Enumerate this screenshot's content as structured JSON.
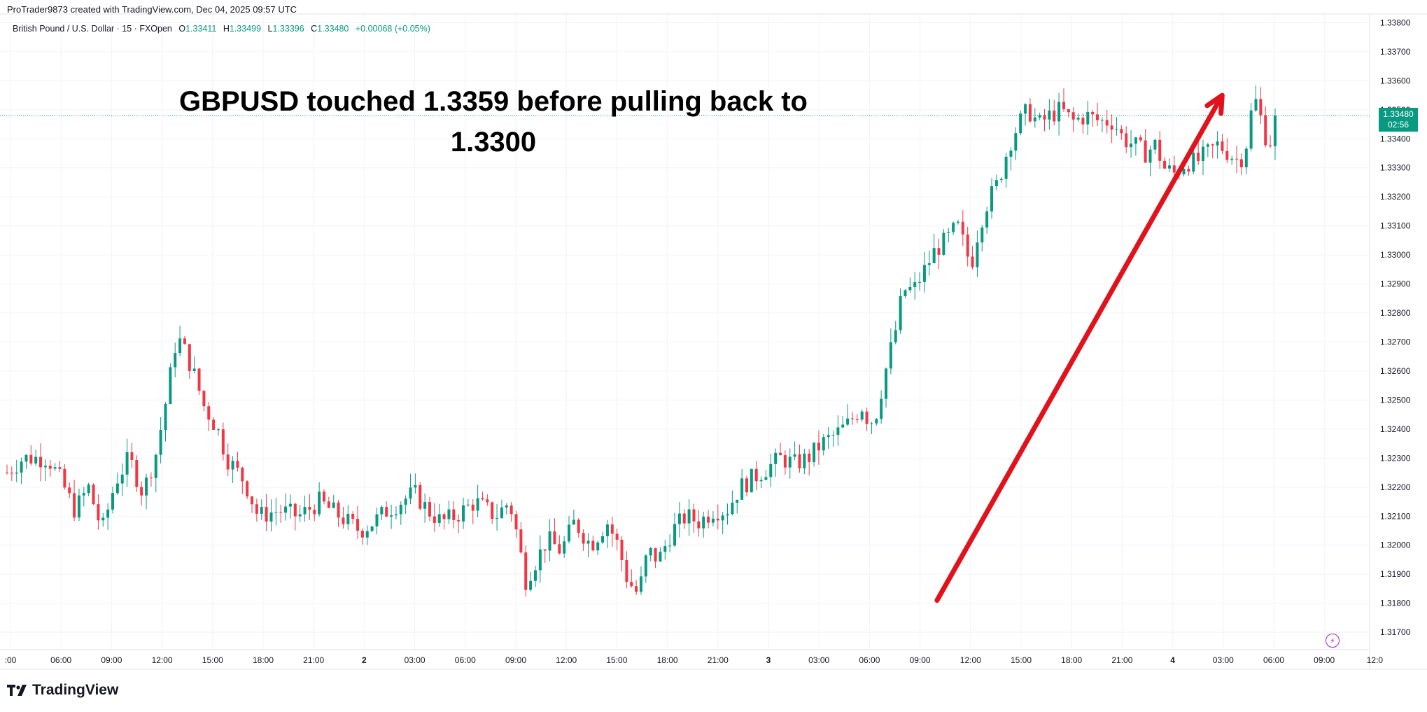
{
  "header": {
    "attribution": "ProTrader9873 created with TradingView.com, Dec 04, 2025 09:57 UTC",
    "symbol": "British Pound / U.S. Dollar · 15 · FXOpen",
    "ohlc": {
      "o_label": "O",
      "o_value": "1.33411",
      "h_label": "H",
      "h_value": "1.33499",
      "l_label": "L",
      "l_value": "1.33396",
      "c_label": "C",
      "c_value": "1.33480",
      "change": "+0.00068 (+0.05%)"
    }
  },
  "brand": {
    "name": "TradingView"
  },
  "price_badge": {
    "price": "1.33480",
    "countdown": "02:56"
  },
  "icons": {
    "logo": "tradingview-logo-icon",
    "alert": "lightning-bolt-icon"
  },
  "colors": {
    "up": "#089981",
    "down": "#f23645",
    "arrow": "#e0121c",
    "badge": "#089981"
  },
  "chart_data": {
    "type": "candlestick",
    "annotations": [
      {
        "kind": "text",
        "lines": [
          "GBPUSD touched 1.3359 before pulling back to",
          "1.3300"
        ]
      },
      {
        "kind": "arrow",
        "from": {
          "x_index": 0.685,
          "price": 1.3181
        },
        "to": {
          "x_index": 0.895,
          "price": 1.3355
        }
      }
    ],
    "last_price": 1.3348,
    "y_ticks": [
      1.317,
      1.318,
      1.319,
      1.32,
      1.321,
      1.322,
      1.323,
      1.324,
      1.325,
      1.326,
      1.327,
      1.328,
      1.329,
      1.33,
      1.331,
      1.332,
      1.333,
      1.334,
      1.335,
      1.336,
      1.337,
      1.338
    ],
    "y_tick_labels": [
      "1.31700",
      "1.31800",
      "1.31900",
      "1.32000",
      "1.32100",
      "1.32200",
      "1.32300",
      "1.32400",
      "1.32500",
      "1.32600",
      "1.32700",
      "1.32800",
      "1.32900",
      "1.33000",
      "1.33100",
      "1.33200",
      "1.33300",
      "1.33400",
      "1.33500",
      "1.33600",
      "1.33700",
      "1.33800"
    ],
    "ylim": [
      1.3164,
      1.3383
    ],
    "x_ticks": [
      ":00",
      "06:00",
      "09:00",
      "12:00",
      "15:00",
      "18:00",
      "21:00",
      "2",
      "03:00",
      "06:00",
      "09:00",
      "12:00",
      "15:00",
      "18:00",
      "21:00",
      "3",
      "03:00",
      "06:00",
      "09:00",
      "12:00",
      "15:00",
      "18:00",
      "21:00",
      "4",
      "03:00",
      "06:00",
      "09:00",
      "12:0"
    ],
    "grid": true,
    "path": [
      [
        0,
        1.3225
      ],
      [
        0.012,
        1.323
      ],
      [
        0.03,
        1.323
      ],
      [
        0.04,
        1.3222
      ],
      [
        0.05,
        1.3212
      ],
      [
        0.06,
        1.322
      ],
      [
        0.07,
        1.3205
      ],
      [
        0.08,
        1.3222
      ],
      [
        0.09,
        1.323
      ],
      [
        0.1,
        1.3218
      ],
      [
        0.11,
        1.3232
      ],
      [
        0.118,
        1.3252
      ],
      [
        0.125,
        1.3272
      ],
      [
        0.13,
        1.3268
      ],
      [
        0.137,
        1.326
      ],
      [
        0.145,
        1.3248
      ],
      [
        0.155,
        1.324
      ],
      [
        0.162,
        1.323
      ],
      [
        0.175,
        1.3222
      ],
      [
        0.185,
        1.321
      ],
      [
        0.2,
        1.3212
      ],
      [
        0.215,
        1.321
      ],
      [
        0.23,
        1.3215
      ],
      [
        0.245,
        1.321
      ],
      [
        0.26,
        1.3205
      ],
      [
        0.27,
        1.3208
      ],
      [
        0.28,
        1.3212
      ],
      [
        0.3,
        1.3218
      ],
      [
        0.31,
        1.3212
      ],
      [
        0.32,
        1.3208
      ],
      [
        0.33,
        1.321
      ],
      [
        0.345,
        1.3215
      ],
      [
        0.36,
        1.321
      ],
      [
        0.37,
        1.3215
      ],
      [
        0.375,
        1.3205
      ],
      [
        0.382,
        1.3188
      ],
      [
        0.39,
        1.3195
      ],
      [
        0.398,
        1.3202
      ],
      [
        0.408,
        1.3198
      ],
      [
        0.418,
        1.3208
      ],
      [
        0.43,
        1.32
      ],
      [
        0.442,
        1.3208
      ],
      [
        0.45,
        1.32
      ],
      [
        0.457,
        1.3188
      ],
      [
        0.465,
        1.3183
      ],
      [
        0.472,
        1.3198
      ],
      [
        0.48,
        1.3195
      ],
      [
        0.49,
        1.3205
      ],
      [
        0.5,
        1.321
      ],
      [
        0.51,
        1.3208
      ],
      [
        0.52,
        1.3212
      ],
      [
        0.53,
        1.3212
      ],
      [
        0.54,
        1.322
      ],
      [
        0.555,
        1.3225
      ],
      [
        0.57,
        1.323
      ],
      [
        0.58,
        1.3228
      ],
      [
        0.59,
        1.323
      ],
      [
        0.6,
        1.3235
      ],
      [
        0.61,
        1.3238
      ],
      [
        0.62,
        1.3242
      ],
      [
        0.63,
        1.3248
      ],
      [
        0.635,
        1.3242
      ],
      [
        0.64,
        1.3245
      ],
      [
        0.648,
        1.3262
      ],
      [
        0.655,
        1.3275
      ],
      [
        0.66,
        1.3288
      ],
      [
        0.668,
        1.3288
      ],
      [
        0.676,
        1.3295
      ],
      [
        0.684,
        1.3302
      ],
      [
        0.692,
        1.3305
      ],
      [
        0.7,
        1.331
      ],
      [
        0.706,
        1.3302
      ],
      [
        0.71,
        1.3296
      ],
      [
        0.716,
        1.331
      ],
      [
        0.722,
        1.3318
      ],
      [
        0.73,
        1.3325
      ],
      [
        0.738,
        1.3338
      ],
      [
        0.745,
        1.3345
      ],
      [
        0.752,
        1.335
      ],
      [
        0.76,
        1.3345
      ],
      [
        0.768,
        1.3348
      ],
      [
        0.776,
        1.335
      ],
      [
        0.785,
        1.3346
      ],
      [
        0.795,
        1.3348
      ],
      [
        0.805,
        1.3346
      ],
      [
        0.815,
        1.3346
      ],
      [
        0.822,
        1.334
      ],
      [
        0.83,
        1.3338
      ],
      [
        0.838,
        1.3335
      ],
      [
        0.846,
        1.3338
      ],
      [
        0.852,
        1.333
      ],
      [
        0.86,
        1.3328
      ],
      [
        0.868,
        1.3332
      ],
      [
        0.876,
        1.3332
      ],
      [
        0.884,
        1.3335
      ],
      [
        0.892,
        1.3338
      ],
      [
        0.9,
        1.3335
      ],
      [
        0.908,
        1.3332
      ],
      [
        0.914,
        1.334
      ],
      [
        0.918,
        1.3355
      ],
      [
        0.922,
        1.335
      ],
      [
        0.926,
        1.3342
      ],
      [
        0.93,
        1.3338
      ],
      [
        0.934,
        1.3348
      ]
    ]
  }
}
